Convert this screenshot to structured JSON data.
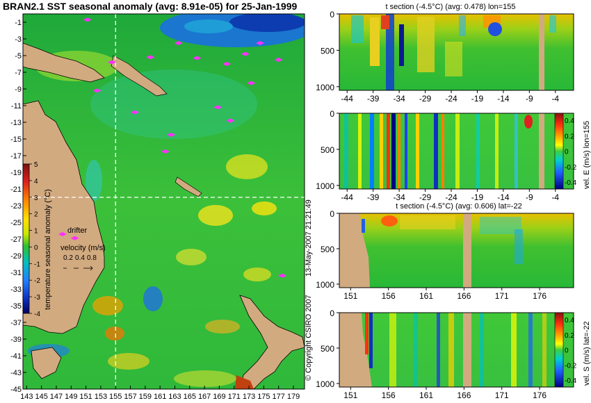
{
  "title": "BRAN2.1 SST seasonal anomaly (avg: 8.91e-05) for 25-Jan-1999",
  "colors": {
    "land": "#d2aa80",
    "ocean": "#2fb83a",
    "marker": "#ff30ff",
    "guide": "#ffffff"
  },
  "chart_data": [
    {
      "type": "heatmap",
      "name": "map",
      "title": "BRAN2.1 SST seasonal anomaly (avg: 8.91e-05) for 25-Jan-1999",
      "xlim": [
        142.5,
        180.5
      ],
      "ylim": [
        -45,
        0
      ],
      "x_ticks": [
        143,
        145,
        147,
        149,
        151,
        153,
        155,
        157,
        159,
        161,
        163,
        165,
        167,
        169,
        171,
        173,
        175,
        177,
        179
      ],
      "y_ticks": [
        -1,
        -3,
        -5,
        -7,
        -9,
        -11,
        -13,
        -15,
        -17,
        -19,
        -21,
        -23,
        -25,
        -27,
        -29,
        -31,
        -33,
        -35,
        -37,
        -39,
        -41,
        -43,
        -45
      ],
      "guide_lines": {
        "lon": 155,
        "lat": -22
      },
      "colorbar": {
        "label": "temperature seasonal anomaly (°C)",
        "range": [
          -4,
          5
        ],
        "ticks": [
          5,
          4,
          3,
          2,
          1,
          0,
          -1,
          -2,
          -3,
          -4
        ]
      },
      "legend": {
        "drifter_label": "drifter",
        "velocity_label": "velocity (m/s)",
        "velocity_scale": [
          "0.2",
          "0.4",
          "0.8"
        ]
      },
      "drifter_points": [
        [
          151.2,
          -0.7
        ],
        [
          154.5,
          -5.8
        ],
        [
          152.5,
          -9.2
        ],
        [
          159.7,
          -5.2
        ],
        [
          157.6,
          -11.8
        ],
        [
          163.5,
          -3.5
        ],
        [
          162.5,
          -14.5
        ],
        [
          161.7,
          -16.5
        ],
        [
          166.0,
          -5.3
        ],
        [
          170.0,
          -6.0
        ],
        [
          172.5,
          -4.8
        ],
        [
          174.5,
          -3.5
        ],
        [
          173.3,
          -8.3
        ],
        [
          168.8,
          -11.2
        ],
        [
          170.5,
          -12.8
        ],
        [
          177.0,
          -5.5
        ],
        [
          177.5,
          -31.4
        ],
        [
          149.5,
          -26.9
        ]
      ]
    },
    {
      "type": "heatmap",
      "name": "t-section-lon155",
      "title": "t section (-4.5°C) (avg: 0.478) lon=155",
      "x_ticks": [
        -44,
        -39,
        -34,
        -29,
        -24,
        -19,
        -14,
        -9,
        -4
      ],
      "y_ticks": [
        0,
        500,
        1000
      ],
      "xlim": [
        -45.5,
        -0.5
      ],
      "ylim": [
        1050,
        0
      ]
    },
    {
      "type": "heatmap",
      "name": "vel-e-section-lon155",
      "title": "",
      "x_ticks": [
        -44,
        -39,
        -34,
        -29,
        -24,
        -19,
        -14,
        -9,
        -4
      ],
      "y_ticks": [
        0,
        500,
        1000
      ],
      "xlim": [
        -45.5,
        -0.5
      ],
      "ylim": [
        1050,
        0
      ],
      "colorbar": {
        "label": "vel. E (m/s) lon=155",
        "ticks": [
          "0.4",
          "0.2",
          "0",
          "-0.2",
          "-0.4"
        ]
      }
    },
    {
      "type": "heatmap",
      "name": "t-section-lat-22",
      "title": "t section (-4.5°C) (avg: 0.606) lat=-22",
      "x_ticks": [
        151,
        156,
        161,
        166,
        171,
        176
      ],
      "y_ticks": [
        0,
        500,
        1000
      ],
      "xlim": [
        149.5,
        180.5
      ],
      "ylim": [
        1050,
        0
      ]
    },
    {
      "type": "heatmap",
      "name": "vel-s-section-lat-22",
      "title": "",
      "x_ticks": [
        151,
        156,
        161,
        166,
        171,
        176
      ],
      "y_ticks": [
        0,
        500,
        1000
      ],
      "xlim": [
        149.5,
        180.5
      ],
      "ylim": [
        1050,
        0
      ],
      "colorbar": {
        "label": "vel. S (m/s) lat=-22",
        "ticks": [
          "0.4",
          "0.2",
          "0",
          "-0.2",
          "-0.4"
        ]
      }
    }
  ],
  "copyright": "© Copyright CSIRO 2007",
  "timestamp": "13-May-2007 21:21:49"
}
